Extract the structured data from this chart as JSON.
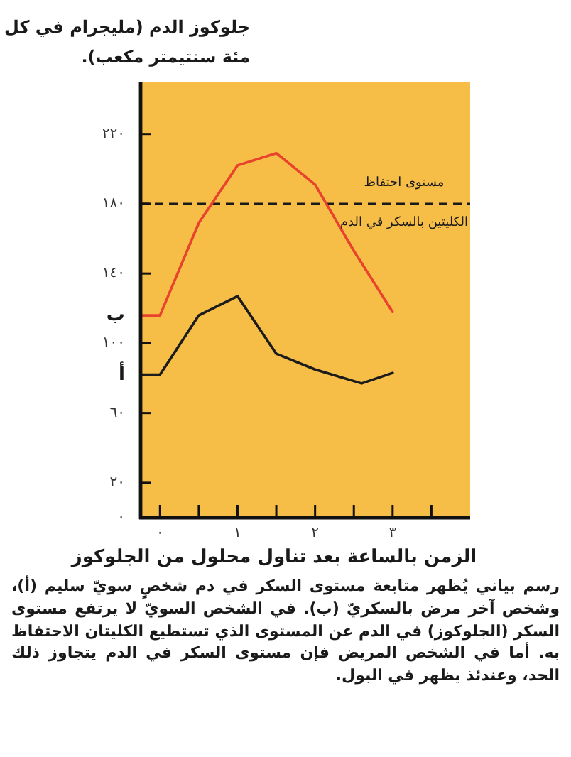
{
  "chart_data": {
    "type": "line",
    "ylabel": "جلوكوز الدم (مليجرام في كل مئة سنتيمتر مكعب).",
    "xlabel": "الزمن بالساعة بعد تناول محلول من الجلوكوز",
    "annotations": [
      "رسم بياني يُظهر متابعة مستوى السكر في دم شخصٍ سويّ سليم (أ)، وشخص آخر مرض بالسكريّ (ب). في الشخص السويّ لا يرتفع مستوى السكر (الجلوكوز) في الدم عن المستوى الذي تستطيع الكليتان الاحتفاظ به. أما في الشخص المريض فإن مستوى السكر في الدم يتجاوز ذلك الحد، وعندئذ يظهر في البول."
    ],
    "series": [
      {
        "name": "أ",
        "color": "#1c1c1c",
        "x": [
          -0.25,
          0,
          0.5,
          1,
          1.5,
          2,
          2.6,
          3
        ],
        "values": [
          82,
          82,
          116,
          127,
          94,
          85,
          77,
          83
        ]
      },
      {
        "name": "ب",
        "color": "#e8432c",
        "x": [
          -0.25,
          0,
          0.5,
          1,
          1.5,
          2,
          2.5,
          3
        ],
        "values": [
          116,
          116,
          169,
          202,
          209,
          191,
          153,
          118
        ]
      }
    ],
    "ref_lines": [
      {
        "axis": "y",
        "value": 180,
        "label": "مستوى احتفاظ الكليتين بالسكر في الدم",
        "color": "#1a1a1a",
        "line_style": "dashed"
      }
    ],
    "xlim": [
      -0.25,
      4
    ],
    "ylim": [
      0,
      250
    ],
    "xticks": [
      {
        "value": 0,
        "label": "٠"
      },
      {
        "value": 0.5,
        "label": null
      },
      {
        "value": 1,
        "label": "١"
      },
      {
        "value": 1.5,
        "label": null
      },
      {
        "value": 2,
        "label": "٢"
      },
      {
        "value": 2.5,
        "label": null
      },
      {
        "value": 3,
        "label": "٣"
      },
      {
        "value": 3.5,
        "label": null
      }
    ],
    "yticks": [
      {
        "value": 0,
        "label": "٠"
      },
      {
        "value": 20,
        "label": "٢٠"
      },
      {
        "value": 60,
        "label": "٦٠"
      },
      {
        "value": 100,
        "label": "١٠٠"
      },
      {
        "value": 140,
        "label": "١٤٠"
      },
      {
        "value": 180,
        "label": "١٨٠"
      },
      {
        "value": 220,
        "label": "٢٢٠"
      }
    ]
  }
}
